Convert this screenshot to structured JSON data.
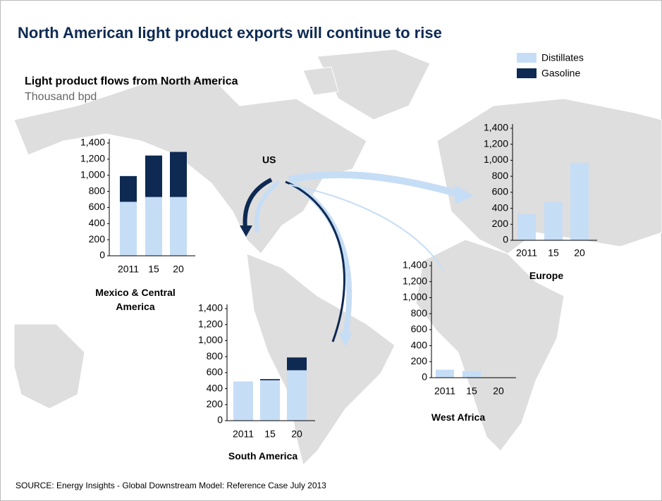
{
  "title": "North American light product exports will continue to rise",
  "chart_heading": "Light product flows from North America",
  "unit": "Thousand bpd",
  "origin_label": "US",
  "source": "SOURCE: Energy Insights - Global Downstream Model: Reference Case July 2013",
  "chart_data": [
    {
      "type": "bar",
      "stacked": true,
      "title": "Mexico & Central America",
      "categories": [
        "2011",
        "15",
        "20"
      ],
      "series": [
        {
          "name": "Distillates",
          "color": "#c6ddf6",
          "values": [
            670,
            730,
            730
          ]
        },
        {
          "name": "Gasoline",
          "color": "#0e2a52",
          "values": [
            320,
            515,
            560
          ]
        }
      ],
      "ylim": [
        0,
        1400
      ],
      "yticks": [
        0,
        200,
        400,
        600,
        800,
        {
          "value": 1000,
          "label": "1,000"
        },
        {
          "value": 1200,
          "label": "1,200"
        },
        {
          "value": 1400,
          "label": "1,400"
        }
      ]
    },
    {
      "type": "bar",
      "stacked": true,
      "title": "South America",
      "categories": [
        "2011",
        "15",
        "20"
      ],
      "series": [
        {
          "name": "Distillates",
          "color": "#c6ddf6",
          "values": [
            490,
            505,
            630
          ]
        },
        {
          "name": "Gasoline",
          "color": "#0e2a52",
          "values": [
            0,
            15,
            160
          ]
        }
      ],
      "ylim": [
        0,
        1400
      ],
      "yticks": [
        0,
        200,
        400,
        600,
        800,
        {
          "value": 1000,
          "label": "1,000"
        },
        {
          "value": 1200,
          "label": "1,200"
        },
        {
          "value": 1400,
          "label": "1,400"
        }
      ]
    },
    {
      "type": "bar",
      "stacked": true,
      "title": "Europe",
      "categories": [
        "2011",
        "15",
        "20"
      ],
      "series": [
        {
          "name": "Distillates",
          "color": "#c6ddf6",
          "values": [
            330,
            480,
            970
          ]
        },
        {
          "name": "Gasoline",
          "color": "#0e2a52",
          "values": [
            0,
            0,
            0
          ]
        }
      ],
      "ylim": [
        0,
        1400
      ],
      "yticks": [
        0,
        200,
        400,
        600,
        800,
        {
          "value": 1000,
          "label": "1,000"
        },
        {
          "value": 1200,
          "label": "1,200"
        },
        {
          "value": 1400,
          "label": "1,400"
        }
      ]
    },
    {
      "type": "bar",
      "stacked": true,
      "title": "West Africa",
      "categories": [
        "2011",
        "15",
        "20"
      ],
      "series": [
        {
          "name": "Distillates",
          "color": "#c6ddf6",
          "values": [
            100,
            85,
            0
          ]
        },
        {
          "name": "Gasoline",
          "color": "#0e2a52",
          "values": [
            0,
            0,
            0
          ]
        }
      ],
      "ylim": [
        0,
        1400
      ],
      "yticks": [
        0,
        200,
        400,
        600,
        800,
        {
          "value": 1000,
          "label": "1,000"
        },
        {
          "value": 1200,
          "label": "1,200"
        },
        {
          "value": 1400,
          "label": "1,400"
        }
      ]
    }
  ]
}
